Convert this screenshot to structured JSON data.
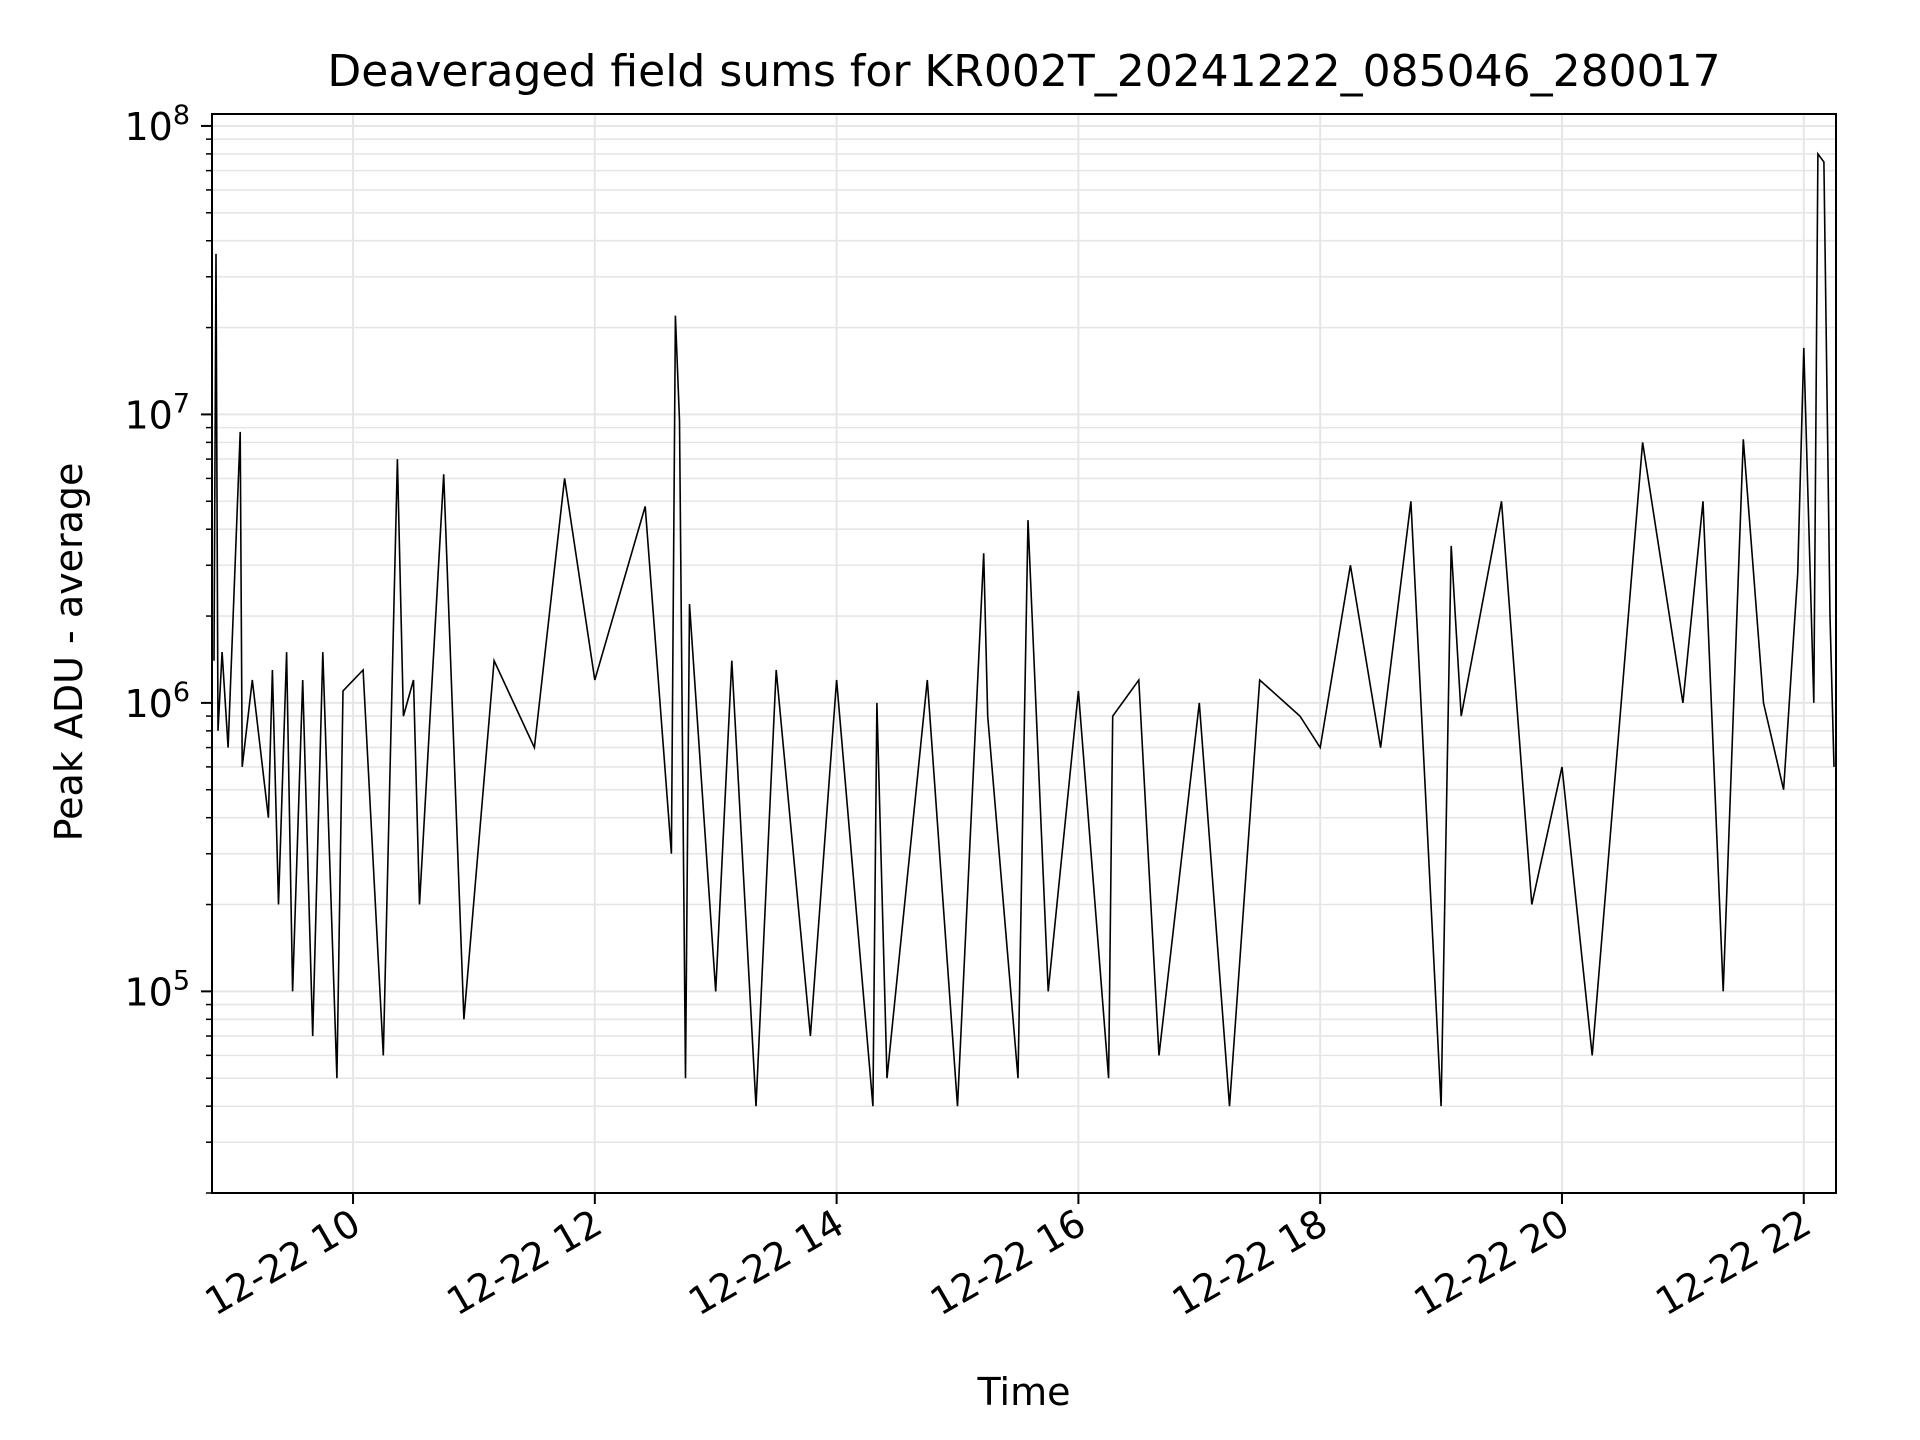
{
  "chart_data": {
    "type": "line",
    "title": "Deaveraged field sums for KR002T_20241222_085046_280017",
    "xlabel": "Time",
    "ylabel": "Peak ADU - average",
    "yscale": "log",
    "ylim": [
      20000,
      110000000
    ],
    "xlim": [
      "2024-12-22 08:50",
      "2024-12-22 22:16"
    ],
    "grid": true,
    "line_color": "#000000",
    "grid_color": "#e6e6e6",
    "x_ticks": [
      {
        "x": "2024-12-22 10:00",
        "label": "12-22 10"
      },
      {
        "x": "2024-12-22 12:00",
        "label": "12-22 12"
      },
      {
        "x": "2024-12-22 14:00",
        "label": "12-22 14"
      },
      {
        "x": "2024-12-22 16:00",
        "label": "12-22 16"
      },
      {
        "x": "2024-12-22 18:00",
        "label": "12-22 18"
      },
      {
        "x": "2024-12-22 20:00",
        "label": "12-22 20"
      },
      {
        "x": "2024-12-22 22:00",
        "label": "12-22 22"
      }
    ],
    "y_ticks": [
      {
        "value": 100000,
        "base": "10",
        "exp": "5"
      },
      {
        "value": 1000000,
        "base": "10",
        "exp": "6"
      },
      {
        "value": 10000000,
        "base": "10",
        "exp": "7"
      },
      {
        "value": 100000000,
        "base": "10",
        "exp": "8"
      }
    ],
    "series": [
      {
        "x": [
          "2024-12-22 08:51",
          "2024-12-22 08:52",
          "2024-12-22 08:53",
          "2024-12-22 08:55",
          "2024-12-22 08:58",
          "2024-12-22 09:04",
          "2024-12-22 09:05",
          "2024-12-22 09:10",
          "2024-12-22 09:18",
          "2024-12-22 09:20",
          "2024-12-22 09:23",
          "2024-12-22 09:27",
          "2024-12-22 09:30",
          "2024-12-22 09:35",
          "2024-12-22 09:40",
          "2024-12-22 09:45",
          "2024-12-22 09:52",
          "2024-12-22 09:55",
          "2024-12-22 10:05",
          "2024-12-22 10:15",
          "2024-12-22 10:22",
          "2024-12-22 10:25",
          "2024-12-22 10:30",
          "2024-12-22 10:33",
          "2024-12-22 10:45",
          "2024-12-22 10:55",
          "2024-12-22 11:10",
          "2024-12-22 11:30",
          "2024-12-22 11:45",
          "2024-12-22 12:00",
          "2024-12-22 12:25",
          "2024-12-22 12:38",
          "2024-12-22 12:40",
          "2024-12-22 12:42",
          "2024-12-22 12:45",
          "2024-12-22 12:47",
          "2024-12-22 13:00",
          "2024-12-22 13:08",
          "2024-12-22 13:20",
          "2024-12-22 13:30",
          "2024-12-22 13:47",
          "2024-12-22 14:00",
          "2024-12-22 14:18",
          "2024-12-22 14:20",
          "2024-12-22 14:25",
          "2024-12-22 14:45",
          "2024-12-22 15:00",
          "2024-12-22 15:13",
          "2024-12-22 15:15",
          "2024-12-22 15:30",
          "2024-12-22 15:35",
          "2024-12-22 15:45",
          "2024-12-22 16:00",
          "2024-12-22 16:15",
          "2024-12-22 16:17",
          "2024-12-22 16:30",
          "2024-12-22 16:40",
          "2024-12-22 17:00",
          "2024-12-22 17:15",
          "2024-12-22 17:30",
          "2024-12-22 17:50",
          "2024-12-22 18:00",
          "2024-12-22 18:15",
          "2024-12-22 18:30",
          "2024-12-22 18:45",
          "2024-12-22 19:00",
          "2024-12-22 19:05",
          "2024-12-22 19:10",
          "2024-12-22 19:30",
          "2024-12-22 19:45",
          "2024-12-22 20:00",
          "2024-12-22 20:15",
          "2024-12-22 20:40",
          "2024-12-22 21:00",
          "2024-12-22 21:10",
          "2024-12-22 21:20",
          "2024-12-22 21:30",
          "2024-12-22 21:40",
          "2024-12-22 21:50",
          "2024-12-22 21:57",
          "2024-12-22 22:00",
          "2024-12-22 22:05",
          "2024-12-22 22:07",
          "2024-12-22 22:10",
          "2024-12-22 22:13",
          "2024-12-22 22:15"
        ],
        "values": [
          1400000,
          36000000,
          800000,
          1500000,
          700000,
          8700000,
          600000,
          1200000,
          400000,
          1300000,
          200000,
          1500000,
          100000,
          1200000,
          70000,
          1500000,
          50000,
          1100000,
          1300000,
          60000,
          7000000,
          900000,
          1200000,
          200000,
          6200000,
          80000,
          1400000,
          700000,
          6000000,
          1200000,
          4800000,
          300000,
          22000000,
          9500000,
          50000,
          2200000,
          100000,
          1400000,
          40000,
          1300000,
          70000,
          1200000,
          40000,
          1000000,
          50000,
          1200000,
          40000,
          3300000,
          900000,
          50000,
          4300000,
          100000,
          1100000,
          50000,
          900000,
          1200000,
          60000,
          1000000,
          40000,
          1200000,
          900000,
          700000,
          3000000,
          700000,
          5000000,
          40000,
          3500000,
          900000,
          5000000,
          200000,
          600000,
          60000,
          8000000,
          1000000,
          5000000,
          100000,
          8200000,
          1000000,
          500000,
          2800000,
          17000000,
          1000000,
          80000000,
          75000000,
          2000000,
          600000
        ]
      }
    ]
  }
}
